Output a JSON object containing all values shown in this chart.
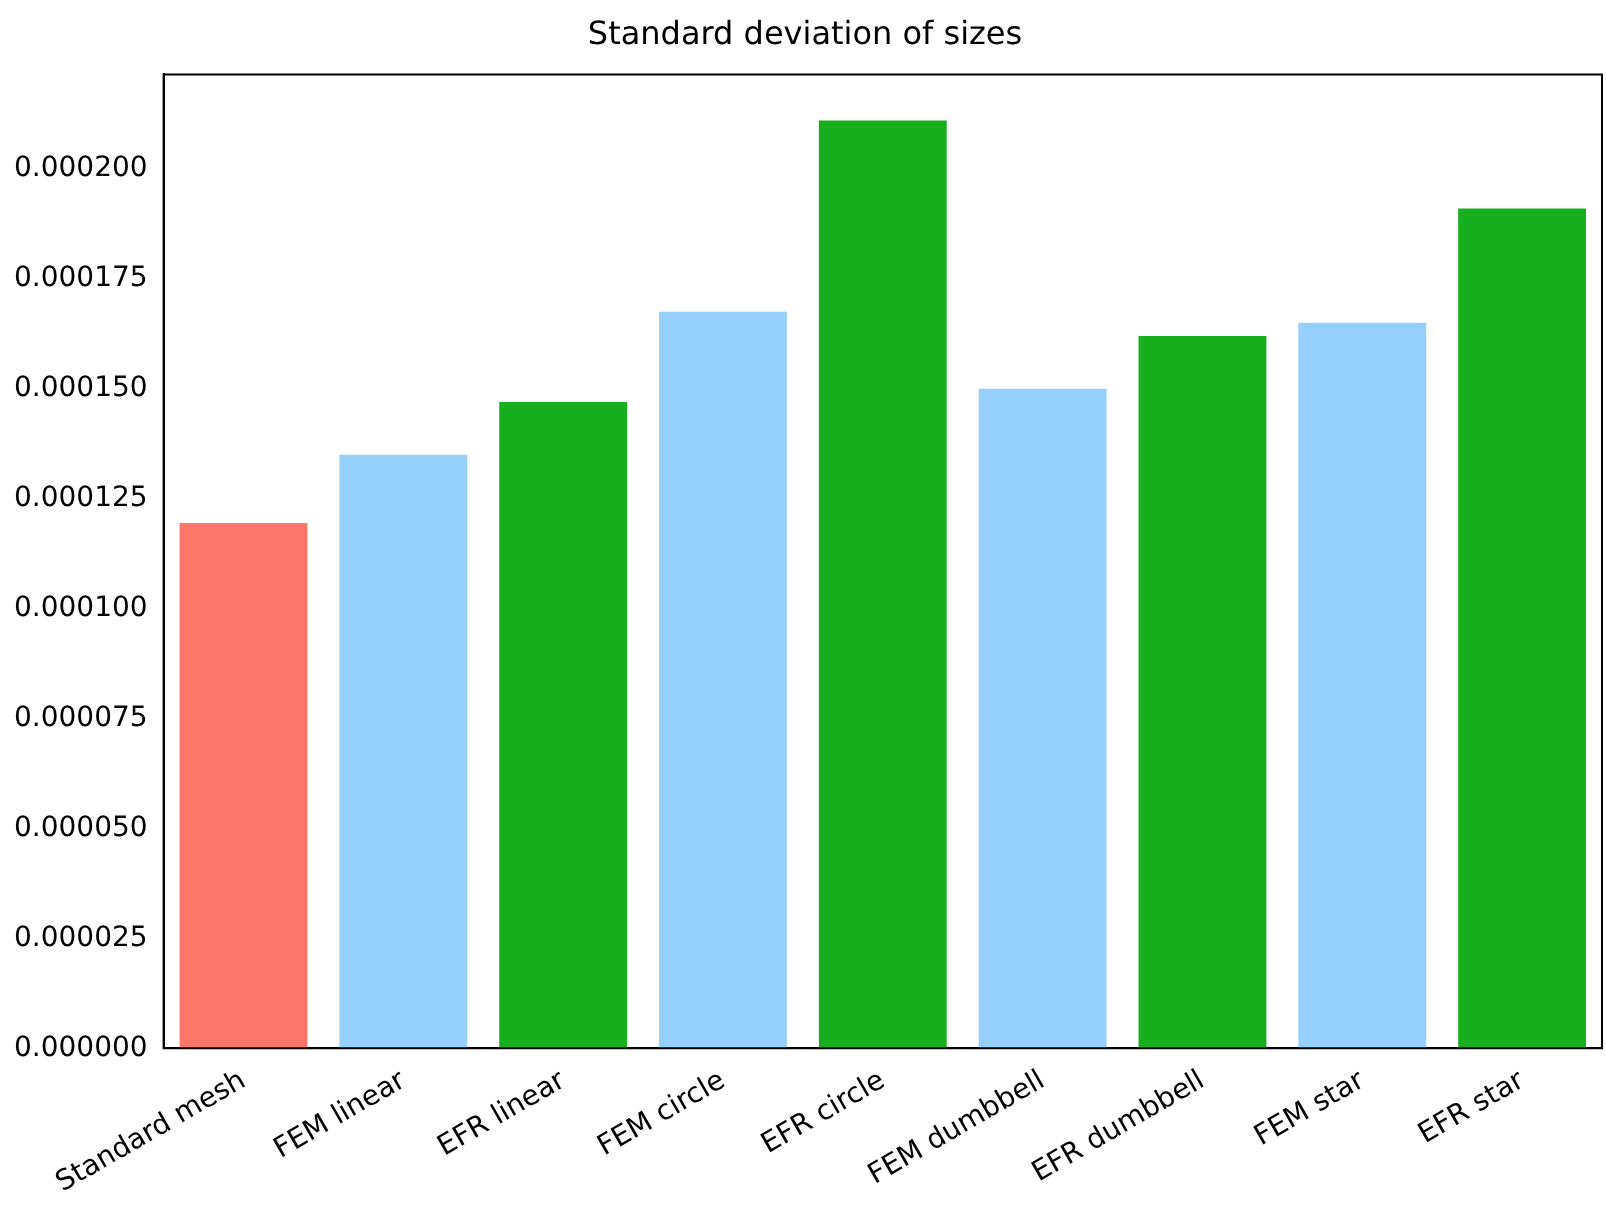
{
  "chart_data": {
    "type": "bar",
    "title": "Standard deviation of sizes",
    "categories": [
      "Standard mesh",
      "FEM linear",
      "EFR linear",
      "FEM circle",
      "EFR circle",
      "FEM dumbbell",
      "EFR dumbbell",
      "FEM star",
      "EFR star"
    ],
    "values": [
      0.0001195,
      0.000135,
      0.000147,
      0.0001675,
      0.000211,
      0.00015,
      0.000162,
      0.000165,
      0.000191
    ],
    "colors": [
      "#fc766a",
      "#95cffb",
      "#17af1e",
      "#95cffb",
      "#17af1e",
      "#95cffb",
      "#17af1e",
      "#95cffb",
      "#17af1e"
    ],
    "ylim": [
      0,
      0.0002215
    ],
    "yticks": [
      {
        "value": 0,
        "label": "0.000000"
      },
      {
        "value": 2.5e-05,
        "label": "0.000025"
      },
      {
        "value": 5e-05,
        "label": "0.000050"
      },
      {
        "value": 7.5e-05,
        "label": "0.000075"
      },
      {
        "value": 0.0001,
        "label": "0.000100"
      },
      {
        "value": 0.000125,
        "label": "0.000125"
      },
      {
        "value": 0.00015,
        "label": "0.000150"
      },
      {
        "value": 0.000175,
        "label": "0.000175"
      },
      {
        "value": 0.0002,
        "label": "0.000200"
      }
    ],
    "grid": false,
    "legend": false
  }
}
